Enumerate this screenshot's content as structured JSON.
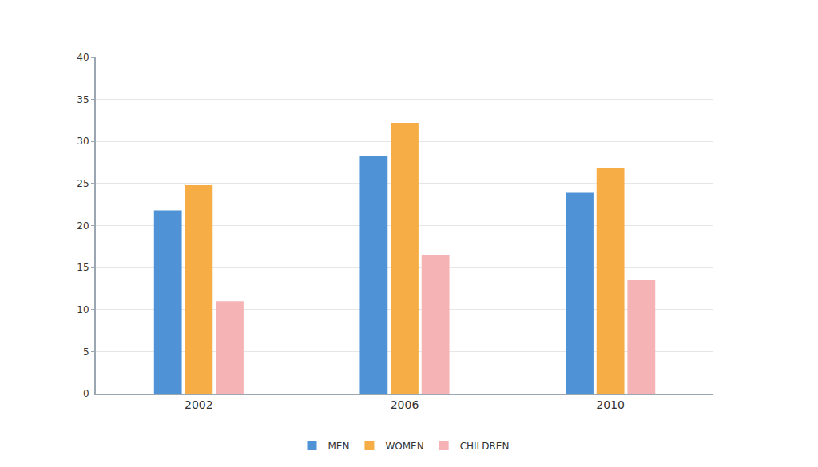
{
  "chart_data": {
    "type": "bar",
    "categories": [
      "2002",
      "2006",
      "2010"
    ],
    "series": [
      {
        "name": "MEN",
        "color": "#4f93d6",
        "values": [
          21.8,
          28.3,
          23.9
        ]
      },
      {
        "name": "WOMEN",
        "color": "#f6ad45",
        "values": [
          24.8,
          32.2,
          26.9
        ]
      },
      {
        "name": "CHILDREN",
        "color": "#f5b3b5",
        "values": [
          11,
          16.5,
          13.5
        ]
      }
    ],
    "ylim": [
      0,
      40
    ],
    "yticks": [
      0,
      5,
      10,
      15,
      20,
      25,
      30,
      35,
      40
    ],
    "grid": true,
    "legend": "bottom"
  }
}
